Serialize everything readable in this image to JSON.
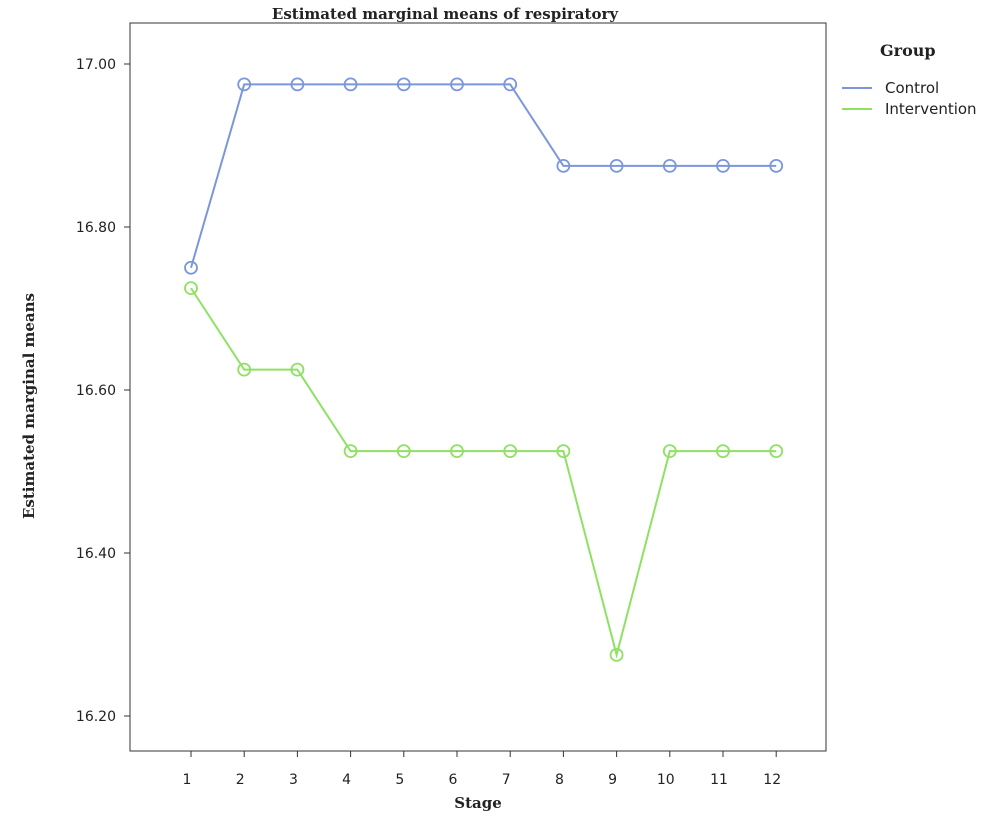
{
  "chart_data": {
    "type": "line",
    "title": "Estimated marginal means of respiratory",
    "xlabel": "Stage",
    "ylabel": "Estimated marginal means",
    "categories": [
      "1",
      "2",
      "3",
      "4",
      "5",
      "6",
      "7",
      "8",
      "9",
      "10",
      "11",
      "12"
    ],
    "ylim": [
      16.18,
      17.05
    ],
    "yticks": [
      "16.20",
      "16.40",
      "16.60",
      "16.80",
      "17.00"
    ],
    "ytick_values": [
      16.2,
      16.4,
      16.6,
      16.8,
      17.0
    ],
    "grid": false,
    "legend_title": "Group",
    "legend_position": "top-right, outside plot",
    "series": [
      {
        "name": "Control",
        "color": "#7b96db",
        "marker": "circle-open",
        "values": [
          16.75,
          16.975,
          16.975,
          16.975,
          16.975,
          16.975,
          16.975,
          16.875,
          16.875,
          16.875,
          16.875,
          16.875
        ]
      },
      {
        "name": "Intervention",
        "color": "#8fe163",
        "marker": "circle-open",
        "values": [
          16.725,
          16.625,
          16.625,
          16.525,
          16.525,
          16.525,
          16.525,
          16.525,
          16.275,
          16.525,
          16.525,
          16.525
        ]
      }
    ]
  }
}
